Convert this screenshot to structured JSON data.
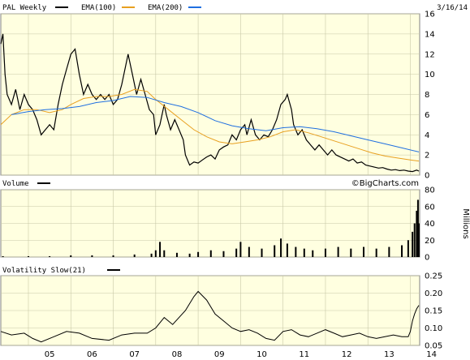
{
  "colors": {
    "plot_bg": "#ffffe0",
    "grid": "#c8c8a8",
    "price": "#000000",
    "ema100": "#e8a020",
    "ema200": "#1f6fe0",
    "volume": "#000000",
    "volatility": "#000000",
    "frame": "#808080"
  },
  "header": {
    "symbol_label": "PAL Weekly",
    "ema100_label": "EMA(100)",
    "ema200_label": "EMA(200)",
    "date": "3/16/14"
  },
  "volume_panel": {
    "label": "Volume",
    "watermark": "©BigCharts.com",
    "unit_label": "Millions"
  },
  "volatility_panel": {
    "label": "Volatility Slow(21)"
  },
  "chart_data": [
    {
      "type": "line",
      "title": "PAL Weekly",
      "x_ticks": [
        "05",
        "06",
        "07",
        "08",
        "09",
        "10",
        "11",
        "12",
        "13",
        "14"
      ],
      "ylim": [
        0,
        16
      ],
      "y_ticks": [
        0,
        2,
        4,
        6,
        8,
        10,
        12,
        14,
        16
      ],
      "grid": true,
      "legend": "top-left",
      "series": [
        {
          "name": "PAL Weekly",
          "color_key": "price",
          "points": [
            [
              2004.35,
              13.0
            ],
            [
              2004.4,
              14.0
            ],
            [
              2004.45,
              10.0
            ],
            [
              2004.5,
              8.0
            ],
            [
              2004.6,
              7.0
            ],
            [
              2004.7,
              8.5
            ],
            [
              2004.8,
              6.5
            ],
            [
              2004.9,
              8.0
            ],
            [
              2005.0,
              7.0
            ],
            [
              2005.1,
              6.5
            ],
            [
              2005.2,
              5.5
            ],
            [
              2005.3,
              4.0
            ],
            [
              2005.4,
              4.5
            ],
            [
              2005.5,
              5.0
            ],
            [
              2005.6,
              4.5
            ],
            [
              2005.7,
              7.0
            ],
            [
              2005.8,
              9.0
            ],
            [
              2005.9,
              10.5
            ],
            [
              2006.0,
              12.0
            ],
            [
              2006.1,
              12.5
            ],
            [
              2006.2,
              10.0
            ],
            [
              2006.3,
              8.0
            ],
            [
              2006.4,
              9.0
            ],
            [
              2006.5,
              8.0
            ],
            [
              2006.6,
              7.5
            ],
            [
              2006.7,
              8.0
            ],
            [
              2006.8,
              7.5
            ],
            [
              2006.9,
              8.0
            ],
            [
              2007.0,
              7.0
            ],
            [
              2007.1,
              7.5
            ],
            [
              2007.2,
              9.0
            ],
            [
              2007.3,
              11.0
            ],
            [
              2007.35,
              12.0
            ],
            [
              2007.45,
              10.0
            ],
            [
              2007.55,
              8.0
            ],
            [
              2007.65,
              9.5
            ],
            [
              2007.75,
              8.0
            ],
            [
              2007.85,
              6.5
            ],
            [
              2007.95,
              6.0
            ],
            [
              2008.0,
              4.0
            ],
            [
              2008.1,
              5.0
            ],
            [
              2008.2,
              7.0
            ],
            [
              2008.25,
              6.0
            ],
            [
              2008.35,
              4.5
            ],
            [
              2008.45,
              5.5
            ],
            [
              2008.55,
              4.5
            ],
            [
              2008.65,
              3.5
            ],
            [
              2008.7,
              2.0
            ],
            [
              2008.8,
              1.0
            ],
            [
              2008.9,
              1.3
            ],
            [
              2009.0,
              1.2
            ],
            [
              2009.1,
              1.5
            ],
            [
              2009.2,
              1.8
            ],
            [
              2009.3,
              2.0
            ],
            [
              2009.4,
              1.6
            ],
            [
              2009.5,
              2.5
            ],
            [
              2009.6,
              2.8
            ],
            [
              2009.7,
              3.0
            ],
            [
              2009.8,
              4.0
            ],
            [
              2009.9,
              3.5
            ],
            [
              2010.0,
              4.5
            ],
            [
              2010.1,
              5.0
            ],
            [
              2010.15,
              4.0
            ],
            [
              2010.25,
              5.5
            ],
            [
              2010.35,
              4.0
            ],
            [
              2010.45,
              3.5
            ],
            [
              2010.55,
              4.0
            ],
            [
              2010.65,
              3.8
            ],
            [
              2010.75,
              4.5
            ],
            [
              2010.85,
              5.5
            ],
            [
              2010.95,
              7.0
            ],
            [
              2011.05,
              7.5
            ],
            [
              2011.1,
              8.0
            ],
            [
              2011.2,
              6.5
            ],
            [
              2011.25,
              5.0
            ],
            [
              2011.35,
              4.0
            ],
            [
              2011.45,
              4.5
            ],
            [
              2011.55,
              3.5
            ],
            [
              2011.65,
              3.0
            ],
            [
              2011.75,
              2.5
            ],
            [
              2011.85,
              3.0
            ],
            [
              2011.95,
              2.5
            ],
            [
              2012.05,
              2.0
            ],
            [
              2012.15,
              2.5
            ],
            [
              2012.25,
              2.0
            ],
            [
              2012.35,
              1.8
            ],
            [
              2012.45,
              1.6
            ],
            [
              2012.55,
              1.4
            ],
            [
              2012.65,
              1.6
            ],
            [
              2012.75,
              1.2
            ],
            [
              2012.85,
              1.3
            ],
            [
              2012.95,
              1.0
            ],
            [
              2013.05,
              0.9
            ],
            [
              2013.15,
              0.8
            ],
            [
              2013.25,
              0.7
            ],
            [
              2013.35,
              0.75
            ],
            [
              2013.45,
              0.6
            ],
            [
              2013.55,
              0.5
            ],
            [
              2013.65,
              0.55
            ],
            [
              2013.75,
              0.45
            ],
            [
              2013.85,
              0.5
            ],
            [
              2013.95,
              0.4
            ],
            [
              2014.05,
              0.35
            ],
            [
              2014.15,
              0.5
            ],
            [
              2014.2,
              0.4
            ]
          ]
        },
        {
          "name": "EMA(100)",
          "color_key": "ema100",
          "points": [
            [
              2004.35,
              5.0
            ],
            [
              2004.6,
              6.0
            ],
            [
              2004.9,
              6.5
            ],
            [
              2005.2,
              6.5
            ],
            [
              2005.5,
              6.2
            ],
            [
              2005.8,
              6.5
            ],
            [
              2006.0,
              7.0
            ],
            [
              2006.3,
              7.6
            ],
            [
              2006.6,
              7.8
            ],
            [
              2006.9,
              7.8
            ],
            [
              2007.2,
              8.0
            ],
            [
              2007.5,
              8.5
            ],
            [
              2007.8,
              8.3
            ],
            [
              2008.0,
              7.5
            ],
            [
              2008.3,
              6.5
            ],
            [
              2008.6,
              5.5
            ],
            [
              2008.9,
              4.5
            ],
            [
              2009.2,
              3.8
            ],
            [
              2009.5,
              3.3
            ],
            [
              2009.8,
              3.1
            ],
            [
              2010.1,
              3.3
            ],
            [
              2010.4,
              3.5
            ],
            [
              2010.7,
              3.8
            ],
            [
              2011.0,
              4.3
            ],
            [
              2011.3,
              4.5
            ],
            [
              2011.6,
              4.2
            ],
            [
              2011.9,
              3.8
            ],
            [
              2012.2,
              3.4
            ],
            [
              2012.5,
              3.0
            ],
            [
              2012.8,
              2.6
            ],
            [
              2013.1,
              2.2
            ],
            [
              2013.4,
              1.9
            ],
            [
              2013.7,
              1.7
            ],
            [
              2014.0,
              1.5
            ],
            [
              2014.2,
              1.4
            ]
          ]
        },
        {
          "name": "EMA(200)",
          "color_key": "ema200",
          "points": [
            [
              2004.6,
              6.0
            ],
            [
              2005.0,
              6.3
            ],
            [
              2005.4,
              6.5
            ],
            [
              2005.8,
              6.6
            ],
            [
              2006.2,
              6.8
            ],
            [
              2006.6,
              7.2
            ],
            [
              2007.0,
              7.4
            ],
            [
              2007.4,
              7.8
            ],
            [
              2007.8,
              7.7
            ],
            [
              2008.2,
              7.2
            ],
            [
              2008.6,
              6.8
            ],
            [
              2009.0,
              6.2
            ],
            [
              2009.4,
              5.4
            ],
            [
              2009.8,
              4.9
            ],
            [
              2010.2,
              4.6
            ],
            [
              2010.6,
              4.4
            ],
            [
              2011.0,
              4.7
            ],
            [
              2011.4,
              4.8
            ],
            [
              2011.8,
              4.6
            ],
            [
              2012.2,
              4.3
            ],
            [
              2012.6,
              3.9
            ],
            [
              2013.0,
              3.5
            ],
            [
              2013.4,
              3.1
            ],
            [
              2013.8,
              2.7
            ],
            [
              2014.2,
              2.3
            ]
          ]
        }
      ]
    },
    {
      "type": "bar",
      "title": "Volume",
      "ylabel": "Millions",
      "ylim": [
        0,
        80
      ],
      "y_ticks": [
        0,
        20,
        40,
        60,
        80
      ],
      "grid": true,
      "series": [
        {
          "name": "Volume",
          "color_key": "volume",
          "points": [
            [
              2004.4,
              1
            ],
            [
              2005.0,
              1
            ],
            [
              2005.5,
              1
            ],
            [
              2006.0,
              2
            ],
            [
              2006.5,
              2
            ],
            [
              2007.0,
              2
            ],
            [
              2007.5,
              3
            ],
            [
              2007.9,
              4
            ],
            [
              2008.0,
              8
            ],
            [
              2008.1,
              18
            ],
            [
              2008.2,
              8
            ],
            [
              2008.5,
              5
            ],
            [
              2008.8,
              4
            ],
            [
              2009.0,
              6
            ],
            [
              2009.3,
              8
            ],
            [
              2009.6,
              7
            ],
            [
              2009.9,
              10
            ],
            [
              2010.0,
              18
            ],
            [
              2010.2,
              12
            ],
            [
              2010.5,
              10
            ],
            [
              2010.8,
              14
            ],
            [
              2010.95,
              22
            ],
            [
              2011.1,
              16
            ],
            [
              2011.3,
              12
            ],
            [
              2011.5,
              10
            ],
            [
              2011.7,
              8
            ],
            [
              2012.0,
              10
            ],
            [
              2012.3,
              12
            ],
            [
              2012.6,
              10
            ],
            [
              2012.9,
              12
            ],
            [
              2013.2,
              10
            ],
            [
              2013.5,
              12
            ],
            [
              2013.8,
              14
            ],
            [
              2013.95,
              20
            ],
            [
              2014.05,
              30
            ],
            [
              2014.1,
              40
            ],
            [
              2014.15,
              55
            ],
            [
              2014.18,
              68
            ],
            [
              2014.2,
              40
            ]
          ]
        }
      ]
    },
    {
      "type": "line",
      "title": "Volatility Slow(21)",
      "ylim": [
        0.05,
        0.25
      ],
      "y_ticks": [
        0.05,
        0.1,
        0.15,
        0.2,
        0.25
      ],
      "grid": true,
      "series": [
        {
          "name": "Volatility Slow(21)",
          "color_key": "volatility",
          "points": [
            [
              2004.35,
              0.09
            ],
            [
              2004.6,
              0.08
            ],
            [
              2004.9,
              0.085
            ],
            [
              2005.1,
              0.07
            ],
            [
              2005.3,
              0.06
            ],
            [
              2005.6,
              0.075
            ],
            [
              2005.9,
              0.09
            ],
            [
              2006.2,
              0.085
            ],
            [
              2006.5,
              0.07
            ],
            [
              2006.9,
              0.065
            ],
            [
              2007.2,
              0.08
            ],
            [
              2007.5,
              0.085
            ],
            [
              2007.8,
              0.085
            ],
            [
              2008.0,
              0.1
            ],
            [
              2008.2,
              0.13
            ],
            [
              2008.4,
              0.11
            ],
            [
              2008.7,
              0.15
            ],
            [
              2008.9,
              0.19
            ],
            [
              2009.0,
              0.205
            ],
            [
              2009.2,
              0.18
            ],
            [
              2009.4,
              0.14
            ],
            [
              2009.6,
              0.12
            ],
            [
              2009.8,
              0.1
            ],
            [
              2010.0,
              0.09
            ],
            [
              2010.2,
              0.095
            ],
            [
              2010.4,
              0.085
            ],
            [
              2010.6,
              0.07
            ],
            [
              2010.8,
              0.065
            ],
            [
              2011.0,
              0.09
            ],
            [
              2011.2,
              0.095
            ],
            [
              2011.4,
              0.08
            ],
            [
              2011.6,
              0.075
            ],
            [
              2011.8,
              0.085
            ],
            [
              2012.0,
              0.095
            ],
            [
              2012.2,
              0.085
            ],
            [
              2012.4,
              0.075
            ],
            [
              2012.6,
              0.08
            ],
            [
              2012.8,
              0.085
            ],
            [
              2013.0,
              0.075
            ],
            [
              2013.2,
              0.07
            ],
            [
              2013.4,
              0.075
            ],
            [
              2013.6,
              0.08
            ],
            [
              2013.8,
              0.075
            ],
            [
              2013.95,
              0.075
            ],
            [
              2014.0,
              0.09
            ],
            [
              2014.05,
              0.12
            ],
            [
              2014.1,
              0.14
            ],
            [
              2014.15,
              0.155
            ],
            [
              2014.2,
              0.165
            ]
          ]
        }
      ]
    }
  ]
}
